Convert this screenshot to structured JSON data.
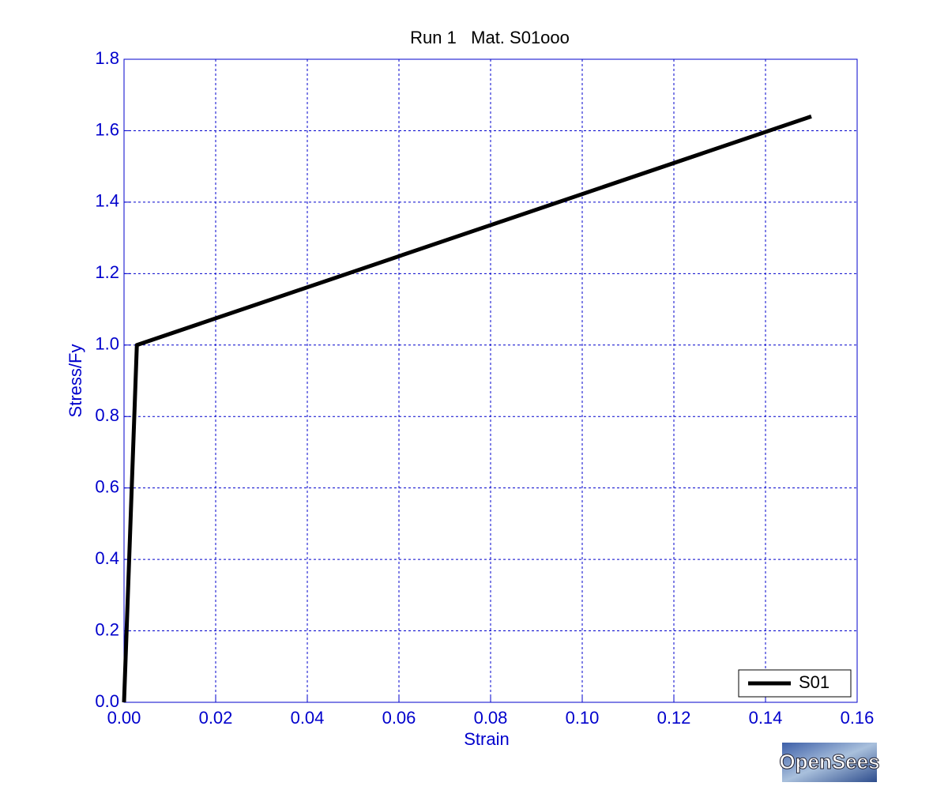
{
  "chart_data": {
    "type": "line",
    "title": "Run 1   Mat. S01ooo",
    "x_label": "Strain",
    "y_label": "Stress/Fy",
    "x": [
      0,
      0.0028,
      0.15
    ],
    "series": [
      {
        "name": "S01",
        "color": "#000000",
        "values": [
          0,
          1.0,
          1.64
        ]
      }
    ],
    "xlim": [
      0,
      0.16
    ],
    "xticks": [
      {
        "value": 0,
        "label": "0.00"
      },
      0.02,
      0.04,
      0.06,
      0.08,
      {
        "value": 0.1,
        "label": "0.10"
      },
      0.12,
      0.14,
      0.16
    ],
    "ylim": [
      0,
      1.8
    ],
    "yticks": [
      {
        "value": 0,
        "label": "0.0"
      },
      0.2,
      0.4,
      0.6,
      0.8,
      {
        "value": 1,
        "label": "1.0"
      },
      1.2,
      1.4,
      1.6,
      1.8
    ],
    "grid": true,
    "legend": "lower right",
    "axis_color": "#0000cc"
  },
  "logo": "OpenSees"
}
